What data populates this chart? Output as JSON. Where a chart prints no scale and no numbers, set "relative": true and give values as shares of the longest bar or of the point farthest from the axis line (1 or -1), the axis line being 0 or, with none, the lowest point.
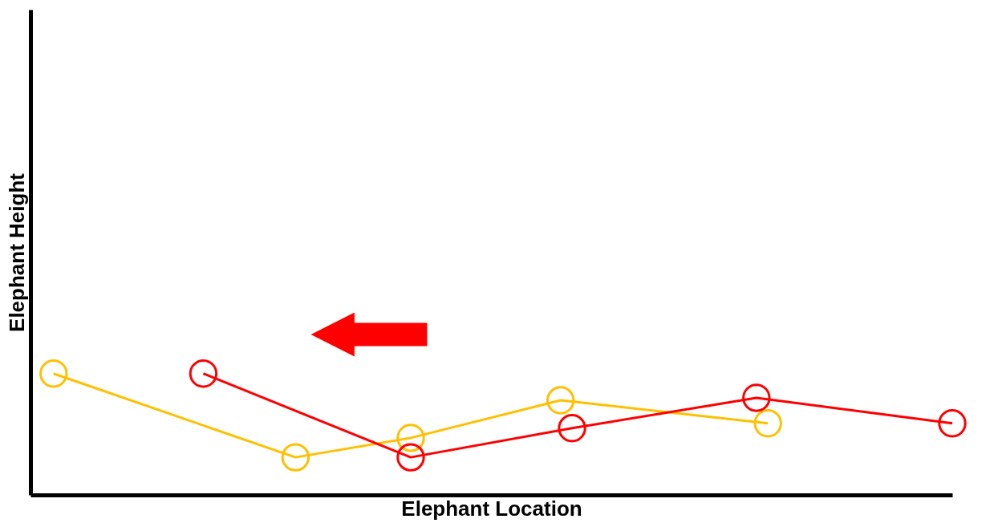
{
  "chart_data": {
    "type": "line",
    "relative": true,
    "xlabel": "Elephant Location",
    "ylabel": "Elephant Height",
    "marker": "circle",
    "grid": false,
    "tick_labels": false,
    "categories": [
      null,
      null,
      null,
      null,
      null,
      null,
      null,
      null,
      null,
      null,
      null,
      null,
      null,
      null,
      null,
      null,
      null,
      null,
      null,
      null,
      null,
      null,
      null,
      null,
      null,
      null,
      null,
      null,
      null,
      null,
      null,
      null,
      null,
      null,
      null,
      null,
      null,
      null,
      null,
      null,
      null,
      null,
      null,
      null,
      null,
      null,
      null,
      null,
      null,
      null,
      null,
      null,
      null,
      null,
      null,
      null,
      null,
      null,
      null,
      null,
      null,
      null,
      null,
      null,
      null,
      null,
      null,
      null,
      null,
      null,
      null,
      null,
      null,
      null,
      null,
      null,
      null,
      null,
      null,
      null,
      null
    ],
    "series": [
      {
        "color": "#ffc000",
        "values": [
          null,
          null,
          1,
          null,
          null,
          null,
          null,
          null,
          null,
          null,
          null,
          null,
          null,
          null,
          null,
          null,
          null,
          null,
          null,
          null,
          null,
          null,
          null,
          0.31,
          null,
          null,
          null,
          null,
          null,
          null,
          null,
          null,
          null,
          0.47,
          null,
          null,
          null,
          null,
          null,
          null,
          null,
          null,
          null,
          null,
          null,
          null,
          0.78,
          null,
          null,
          null,
          null,
          null,
          null,
          null,
          null,
          null,
          null,
          null,
          null,
          null,
          null,
          null,
          null,
          null,
          0.59,
          null,
          null,
          null,
          null,
          null,
          null,
          null,
          null,
          null,
          null,
          null,
          null,
          null,
          null,
          null,
          null
        ]
      },
      {
        "color": "#ff0000",
        "values": [
          null,
          null,
          null,
          null,
          null,
          null,
          null,
          null,
          null,
          null,
          null,
          null,
          null,
          null,
          null,
          1,
          null,
          null,
          null,
          null,
          null,
          null,
          null,
          null,
          null,
          null,
          null,
          null,
          null,
          null,
          null,
          null,
          null,
          0.31,
          null,
          null,
          null,
          null,
          null,
          null,
          null,
          null,
          null,
          null,
          null,
          null,
          null,
          0.55,
          null,
          null,
          null,
          null,
          null,
          null,
          null,
          null,
          null,
          null,
          null,
          null,
          null,
          null,
          null,
          0.8,
          null,
          null,
          null,
          null,
          null,
          null,
          null,
          null,
          null,
          null,
          null,
          null,
          null,
          null,
          null,
          null,
          0.59
        ]
      }
    ]
  }
}
